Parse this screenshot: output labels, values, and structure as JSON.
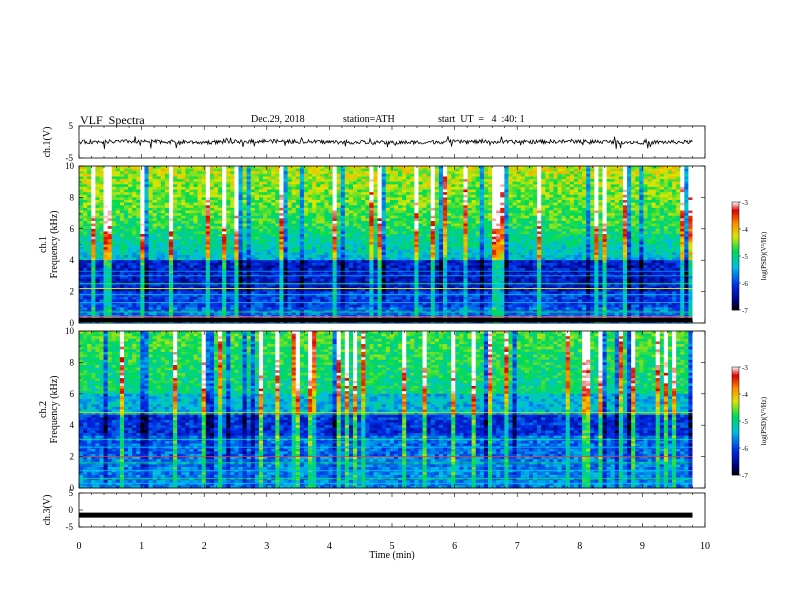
{
  "header": {
    "title": "VLF  Spectra",
    "date": "Dec.29, 2018",
    "station": "station=ATH",
    "start": "start  UT  =   4  :40: 1"
  },
  "colorbar": {
    "label": "log(PSD)(V²/Hz)",
    "ticks": [
      "-3",
      "-4",
      "-5",
      "-6",
      "-7"
    ],
    "stops": [
      "#ffffff",
      "#e00000",
      "#ff8c00",
      "#ffff00",
      "#00e000",
      "#00e0e0",
      "#0060ff",
      "#000080",
      "#000000"
    ]
  },
  "chart_data": [
    {
      "type": "line",
      "name": "ch1-waveform",
      "ylabel": "ch.1(V)",
      "ylim": [
        -5,
        5
      ],
      "yticks": [
        "5",
        "-5"
      ],
      "xlim": [
        0,
        10
      ],
      "x": [
        0,
        1,
        2,
        3,
        4,
        5,
        6,
        7,
        8,
        9,
        9.8
      ],
      "y": [
        0,
        0.2,
        -0.1,
        0.3,
        0,
        -0.2,
        0.1,
        0,
        0.2,
        -0.1,
        0
      ]
    },
    {
      "type": "heatmap",
      "name": "ch1-spectrogram",
      "ylabel_channel": "ch.1",
      "ylabel": "Frequency  (kHz)",
      "ylim": [
        0,
        10
      ],
      "yticks": [
        "0",
        "2",
        "4",
        "6",
        "8",
        "10"
      ],
      "xlim": [
        0,
        10
      ],
      "data_end_min": 9.8,
      "zlabel": "log(PSD)(V²/Hz)",
      "zlim": [
        -7,
        -3
      ]
    },
    {
      "type": "heatmap",
      "name": "ch2-spectrogram",
      "ylabel_channel": "ch.2",
      "ylabel": "Frequency  (kHz)",
      "ylim": [
        0,
        10
      ],
      "yticks": [
        "0",
        "2",
        "4",
        "6",
        "8",
        "10"
      ],
      "xlim": [
        0,
        10
      ],
      "data_end_min": 9.8,
      "zlabel": "log(PSD)(V²/Hz)",
      "zlim": [
        -7,
        -3
      ]
    },
    {
      "type": "line",
      "name": "ch3-waveform",
      "ylabel": "ch.3(V)",
      "ylim": [
        -5,
        5
      ],
      "yticks": [
        "5",
        "0",
        "-5"
      ],
      "xlim": [
        0,
        10
      ],
      "x": [
        0,
        9.8
      ],
      "y": [
        -1.5,
        -1.5
      ]
    }
  ],
  "xaxis": {
    "label": "Time  (min)",
    "ticks": [
      "0",
      "1",
      "2",
      "3",
      "4",
      "5",
      "6",
      "7",
      "8",
      "9",
      "10"
    ]
  }
}
